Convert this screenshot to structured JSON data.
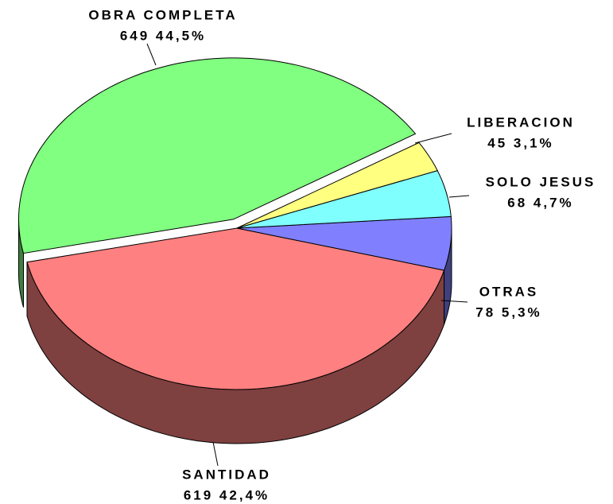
{
  "chart_data": {
    "type": "pie",
    "categories": [
      "OBRA COMPLETA",
      "SANTIDAD",
      "OTRAS",
      "SOLO JESUS",
      "LIBERACION"
    ],
    "values": [
      649,
      619,
      78,
      68,
      45
    ],
    "value_labels": [
      "649  44,5%",
      "619  42,4%",
      "78  5,3%",
      "68  4,7%",
      "45  3,1%"
    ],
    "colors": [
      "#80ff80",
      "#ff8080",
      "#8080ff",
      "#80ffff",
      "#ffff80"
    ],
    "exploded": [
      "OBRA COMPLETA"
    ]
  }
}
